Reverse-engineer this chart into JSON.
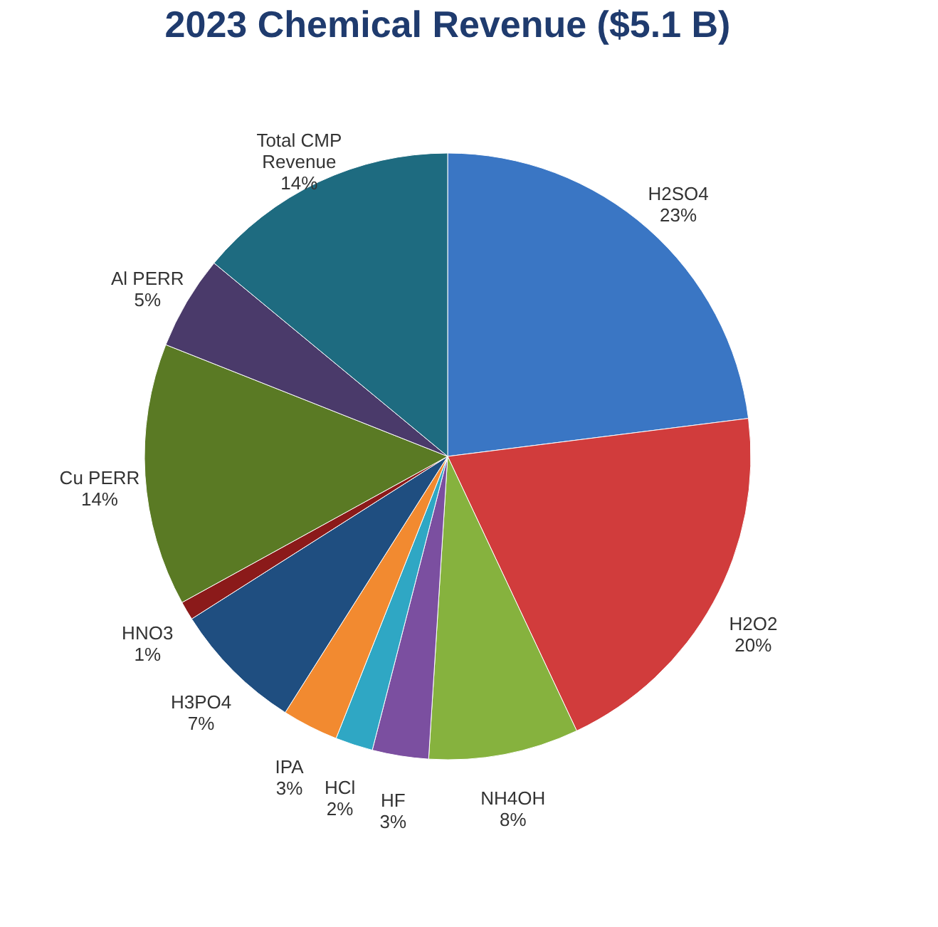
{
  "chart_data": {
    "type": "pie",
    "title": "2023 Chemical Revenue ($5.1 B)",
    "categories": [
      "H2SO4",
      "H2O2",
      "NH4OH",
      "HF",
      "HCl",
      "IPA",
      "H3PO4",
      "HNO3",
      "Cu PERR",
      "Al PERR",
      "Total CMP Revenue"
    ],
    "values": [
      23,
      20,
      8,
      3,
      2,
      3,
      7,
      1,
      14,
      5,
      14
    ],
    "value_labels": [
      "23%",
      "20%",
      "8%",
      "3%",
      "2%",
      "3%",
      "7%",
      "1%",
      "14%",
      "5%",
      "14%"
    ],
    "colors": [
      "#3a76c4",
      "#d13c3c",
      "#86b23e",
      "#7b4fa0",
      "#2fa7c4",
      "#f28a30",
      "#1f4e80",
      "#8b1a1a",
      "#5a7a24",
      "#4a3a6a",
      "#1e6b80"
    ],
    "legend": false
  }
}
